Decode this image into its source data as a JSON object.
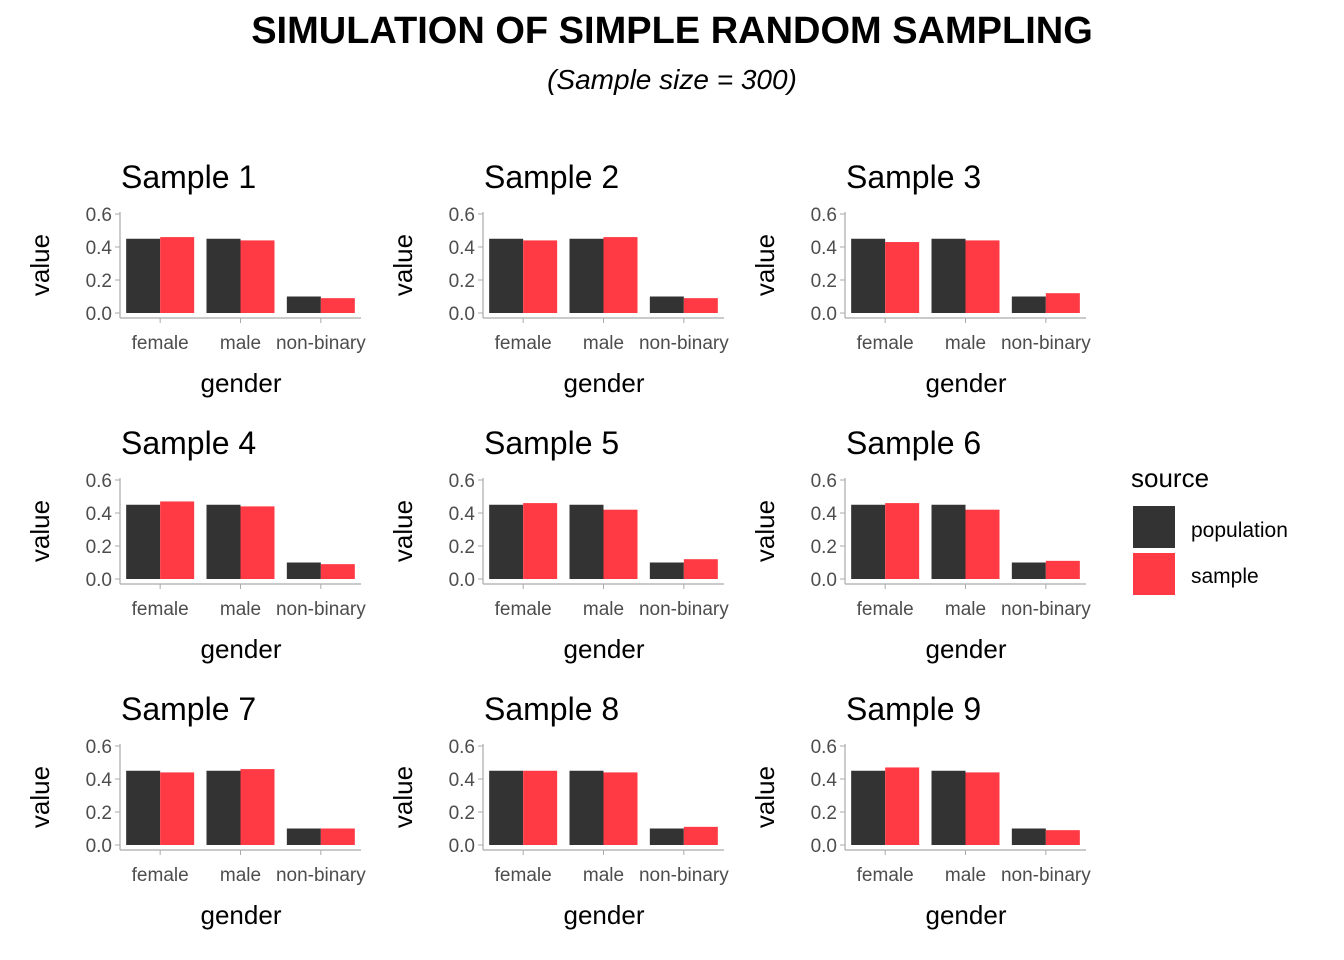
{
  "title": "SIMULATION OF SIMPLE RANDOM SAMPLING",
  "subtitle": "(Sample size = 300)",
  "legend": {
    "title": "source",
    "items": [
      {
        "label": "population",
        "color": "#333333"
      },
      {
        "label": "sample",
        "color": "#FF3A44"
      }
    ]
  },
  "colors": {
    "population": "#333333",
    "sample": "#FF3A44",
    "axis": "#AAAAAA",
    "tick_text": "#4D4D4D"
  },
  "chart_data": [
    {
      "type": "bar",
      "title": "Sample 1",
      "xlabel": "gender",
      "ylabel": "value",
      "categories": [
        "female",
        "male",
        "non-binary"
      ],
      "ylim": [
        0,
        0.6
      ],
      "yticks": [
        "0.0",
        "0.2",
        "0.4",
        "0.6"
      ],
      "series": [
        {
          "name": "population",
          "values": [
            0.45,
            0.45,
            0.1
          ]
        },
        {
          "name": "sample",
          "values": [
            0.46,
            0.44,
            0.09
          ]
        }
      ]
    },
    {
      "type": "bar",
      "title": "Sample 2",
      "xlabel": "gender",
      "ylabel": "value",
      "categories": [
        "female",
        "male",
        "non-binary"
      ],
      "ylim": [
        0,
        0.6
      ],
      "yticks": [
        "0.0",
        "0.2",
        "0.4",
        "0.6"
      ],
      "series": [
        {
          "name": "population",
          "values": [
            0.45,
            0.45,
            0.1
          ]
        },
        {
          "name": "sample",
          "values": [
            0.44,
            0.46,
            0.09
          ]
        }
      ]
    },
    {
      "type": "bar",
      "title": "Sample 3",
      "xlabel": "gender",
      "ylabel": "value",
      "categories": [
        "female",
        "male",
        "non-binary"
      ],
      "ylim": [
        0,
        0.6
      ],
      "yticks": [
        "0.0",
        "0.2",
        "0.4",
        "0.6"
      ],
      "series": [
        {
          "name": "population",
          "values": [
            0.45,
            0.45,
            0.1
          ]
        },
        {
          "name": "sample",
          "values": [
            0.43,
            0.44,
            0.12
          ]
        }
      ]
    },
    {
      "type": "bar",
      "title": "Sample 4",
      "xlabel": "gender",
      "ylabel": "value",
      "categories": [
        "female",
        "male",
        "non-binary"
      ],
      "ylim": [
        0,
        0.6
      ],
      "yticks": [
        "0.0",
        "0.2",
        "0.4",
        "0.6"
      ],
      "series": [
        {
          "name": "population",
          "values": [
            0.45,
            0.45,
            0.1
          ]
        },
        {
          "name": "sample",
          "values": [
            0.47,
            0.44,
            0.09
          ]
        }
      ]
    },
    {
      "type": "bar",
      "title": "Sample 5",
      "xlabel": "gender",
      "ylabel": "value",
      "categories": [
        "female",
        "male",
        "non-binary"
      ],
      "ylim": [
        0,
        0.6
      ],
      "yticks": [
        "0.0",
        "0.2",
        "0.4",
        "0.6"
      ],
      "series": [
        {
          "name": "population",
          "values": [
            0.45,
            0.45,
            0.1
          ]
        },
        {
          "name": "sample",
          "values": [
            0.46,
            0.42,
            0.12
          ]
        }
      ]
    },
    {
      "type": "bar",
      "title": "Sample 6",
      "xlabel": "gender",
      "ylabel": "value",
      "categories": [
        "female",
        "male",
        "non-binary"
      ],
      "ylim": [
        0,
        0.6
      ],
      "yticks": [
        "0.0",
        "0.2",
        "0.4",
        "0.6"
      ],
      "series": [
        {
          "name": "population",
          "values": [
            0.45,
            0.45,
            0.1
          ]
        },
        {
          "name": "sample",
          "values": [
            0.46,
            0.42,
            0.11
          ]
        }
      ]
    },
    {
      "type": "bar",
      "title": "Sample 7",
      "xlabel": "gender",
      "ylabel": "value",
      "categories": [
        "female",
        "male",
        "non-binary"
      ],
      "ylim": [
        0,
        0.6
      ],
      "yticks": [
        "0.0",
        "0.2",
        "0.4",
        "0.6"
      ],
      "series": [
        {
          "name": "population",
          "values": [
            0.45,
            0.45,
            0.1
          ]
        },
        {
          "name": "sample",
          "values": [
            0.44,
            0.46,
            0.1
          ]
        }
      ]
    },
    {
      "type": "bar",
      "title": "Sample 8",
      "xlabel": "gender",
      "ylabel": "value",
      "categories": [
        "female",
        "male",
        "non-binary"
      ],
      "ylim": [
        0,
        0.6
      ],
      "yticks": [
        "0.0",
        "0.2",
        "0.4",
        "0.6"
      ],
      "series": [
        {
          "name": "population",
          "values": [
            0.45,
            0.45,
            0.1
          ]
        },
        {
          "name": "sample",
          "values": [
            0.45,
            0.44,
            0.11
          ]
        }
      ]
    },
    {
      "type": "bar",
      "title": "Sample 9",
      "xlabel": "gender",
      "ylabel": "value",
      "categories": [
        "female",
        "male",
        "non-binary"
      ],
      "ylim": [
        0,
        0.6
      ],
      "yticks": [
        "0.0",
        "0.2",
        "0.4",
        "0.6"
      ],
      "series": [
        {
          "name": "population",
          "values": [
            0.45,
            0.45,
            0.1
          ]
        },
        {
          "name": "sample",
          "values": [
            0.47,
            0.44,
            0.09
          ]
        }
      ]
    }
  ]
}
